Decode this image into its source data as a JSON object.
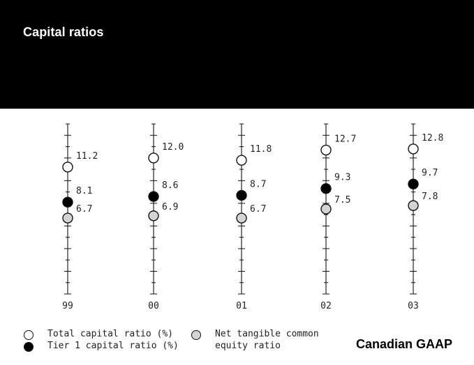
{
  "header": {
    "title": "Capital ratios",
    "basis": "Canadian GAAP"
  },
  "chart_data": {
    "type": "scatter",
    "categories": [
      "99",
      "00",
      "01",
      "02",
      "03"
    ],
    "ylim": [
      0,
      15
    ],
    "series": [
      {
        "name": "Total capital ratio (%)",
        "style": "open",
        "values": [
          11.2,
          12.0,
          11.8,
          12.7,
          12.8
        ],
        "labels": [
          "11.2",
          "12.0",
          "11.8",
          "12.7",
          "12.8"
        ]
      },
      {
        "name": "Tier 1 capital ratio (%)",
        "style": "filled",
        "values": [
          8.1,
          8.6,
          8.7,
          9.3,
          9.7
        ],
        "labels": [
          "8.1",
          "8.6",
          "8.7",
          "9.3",
          "9.7"
        ]
      },
      {
        "name": "Net tangible common equity ratio",
        "style": "grey",
        "values": [
          6.7,
          6.9,
          6.7,
          7.5,
          7.8
        ],
        "labels": [
          "6.7",
          "6.9",
          "6.7",
          "7.5",
          "7.8"
        ]
      }
    ],
    "legend": {
      "total_label": "Total capital ratio (%)",
      "tier1_label": "Tier 1 capital ratio (%)",
      "net_label_line1": "Net tangible common",
      "net_label_line2": "equity ratio"
    },
    "colors": {
      "open": "#ffffff",
      "filled": "#000000",
      "grey": "#d4d4d4",
      "stroke": "#111111"
    }
  }
}
